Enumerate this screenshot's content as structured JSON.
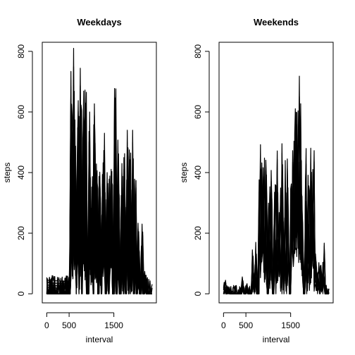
{
  "chart_data": [
    {
      "type": "line",
      "title": "Weekdays",
      "xlabel": "interval",
      "ylabel": "steps",
      "xlim": [
        -100,
        2450
      ],
      "ylim": [
        -30,
        830
      ],
      "xticks": [
        0,
        500,
        1500
      ],
      "xtick_labels": [
        "0",
        "500",
        "1500"
      ],
      "yticks": [
        0,
        200,
        400,
        600,
        800
      ],
      "ytick_labels": [
        "0",
        "200",
        "400",
        "600",
        "800"
      ],
      "grid": false,
      "series_note_peaks": [
        {
          "x": 550,
          "y": 790
        },
        {
          "x": 600,
          "y": 810
        },
        {
          "x": 640,
          "y": 620
        },
        {
          "x": 700,
          "y": 760
        },
        {
          "x": 760,
          "y": 790
        },
        {
          "x": 820,
          "y": 800
        },
        {
          "x": 870,
          "y": 740
        },
        {
          "x": 960,
          "y": 600
        },
        {
          "x": 1010,
          "y": 420
        },
        {
          "x": 1070,
          "y": 760
        },
        {
          "x": 1120,
          "y": 500
        },
        {
          "x": 1190,
          "y": 520
        },
        {
          "x": 1250,
          "y": 460
        },
        {
          "x": 1290,
          "y": 530
        },
        {
          "x": 1350,
          "y": 400
        },
        {
          "x": 1410,
          "y": 420
        },
        {
          "x": 1450,
          "y": 480
        },
        {
          "x": 1530,
          "y": 760
        },
        {
          "x": 1600,
          "y": 540
        },
        {
          "x": 1680,
          "y": 430
        },
        {
          "x": 1740,
          "y": 500
        },
        {
          "x": 1800,
          "y": 540
        },
        {
          "x": 1860,
          "y": 520
        },
        {
          "x": 1920,
          "y": 540
        },
        {
          "x": 1980,
          "y": 420
        },
        {
          "x": 2050,
          "y": 250
        },
        {
          "x": 2130,
          "y": 230
        },
        {
          "x": 2200,
          "y": 80
        }
      ]
    },
    {
      "type": "line",
      "title": "Weekends",
      "xlabel": "interval",
      "ylabel": "steps",
      "xlim": [
        -100,
        2450
      ],
      "ylim": [
        -30,
        830
      ],
      "xticks": [
        0,
        500,
        1500
      ],
      "xtick_labels": [
        "0",
        "500",
        "1500"
      ],
      "yticks": [
        0,
        200,
        400,
        600,
        800
      ],
      "ytick_labels": [
        "0",
        "200",
        "400",
        "600",
        "800"
      ],
      "grid": false,
      "series_note_peaks": [
        {
          "x": 30,
          "y": 50
        },
        {
          "x": 110,
          "y": 30
        },
        {
          "x": 430,
          "y": 60
        },
        {
          "x": 520,
          "y": 40
        },
        {
          "x": 660,
          "y": 160
        },
        {
          "x": 720,
          "y": 170
        },
        {
          "x": 810,
          "y": 540
        },
        {
          "x": 860,
          "y": 550
        },
        {
          "x": 900,
          "y": 500
        },
        {
          "x": 950,
          "y": 540
        },
        {
          "x": 1020,
          "y": 400
        },
        {
          "x": 1070,
          "y": 480
        },
        {
          "x": 1150,
          "y": 520
        },
        {
          "x": 1210,
          "y": 510
        },
        {
          "x": 1260,
          "y": 420
        },
        {
          "x": 1320,
          "y": 550
        },
        {
          "x": 1380,
          "y": 440
        },
        {
          "x": 1440,
          "y": 500
        },
        {
          "x": 1520,
          "y": 460
        },
        {
          "x": 1560,
          "y": 560
        },
        {
          "x": 1600,
          "y": 760
        },
        {
          "x": 1640,
          "y": 780
        },
        {
          "x": 1680,
          "y": 790
        },
        {
          "x": 1720,
          "y": 740
        },
        {
          "x": 1760,
          "y": 430
        },
        {
          "x": 1840,
          "y": 560
        },
        {
          "x": 1900,
          "y": 490
        },
        {
          "x": 1960,
          "y": 520
        },
        {
          "x": 2010,
          "y": 530
        },
        {
          "x": 2060,
          "y": 160
        },
        {
          "x": 2120,
          "y": 110
        },
        {
          "x": 2180,
          "y": 120
        },
        {
          "x": 2240,
          "y": 180
        }
      ]
    }
  ]
}
